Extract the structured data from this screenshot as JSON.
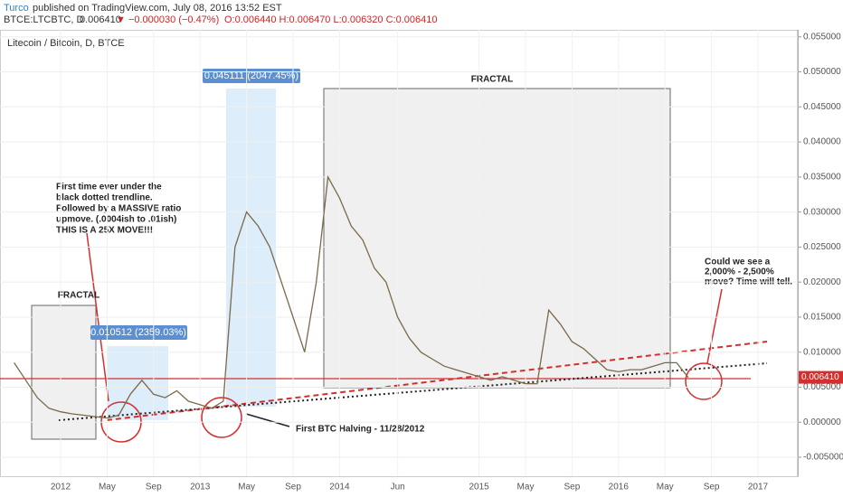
{
  "header": {
    "author": "Turco",
    "published": "published on TradingView.com, July 08, 2016 13:52 EST",
    "symbol": "BTCE:LTCBTC, D",
    "last": "0.006410",
    "change": "▼ −0.000030 (−0.47%)",
    "ohlc": "O:0.006440 H:0.006470 L:0.006320 C:0.006410"
  },
  "chart_data": {
    "type": "line",
    "title": "Litecoin / Bitcoin, D, BTCE",
    "color": "#7a6a4a",
    "x": [
      "2011-09",
      "2011-10",
      "2011-11",
      "2011-12",
      "2012-01",
      "2012-02",
      "2012-03",
      "2012-04",
      "2012-05",
      "2012-06",
      "2012-07",
      "2012-08",
      "2012-09",
      "2012-10",
      "2012-11",
      "2012-12",
      "2013-01",
      "2013-02",
      "2013-03",
      "2013-04",
      "2013-05",
      "2013-06",
      "2013-07",
      "2013-08",
      "2013-09",
      "2013-10",
      "2013-11",
      "2013-12",
      "2014-01",
      "2014-02",
      "2014-03",
      "2014-04",
      "2014-05",
      "2014-06",
      "2014-07",
      "2014-08",
      "2014-09",
      "2014-10",
      "2014-11",
      "2014-12",
      "2015-01",
      "2015-02",
      "2015-03",
      "2015-04",
      "2015-05",
      "2015-06",
      "2015-07",
      "2015-08",
      "2015-09",
      "2015-10",
      "2015-11",
      "2015-12",
      "2016-01",
      "2016-02",
      "2016-03",
      "2016-04",
      "2016-05",
      "2016-06",
      "2016-07"
    ],
    "values": [
      0.0085,
      0.006,
      0.0035,
      0.002,
      0.0015,
      0.0012,
      0.001,
      0.0008,
      0.0006,
      0.001,
      0.004,
      0.006,
      0.004,
      0.0035,
      0.0045,
      0.003,
      0.0025,
      0.002,
      0.003,
      0.025,
      0.03,
      0.028,
      0.025,
      0.02,
      0.015,
      0.01,
      0.02,
      0.035,
      0.032,
      0.028,
      0.026,
      0.022,
      0.02,
      0.015,
      0.012,
      0.01,
      0.009,
      0.008,
      0.0075,
      0.007,
      0.0065,
      0.006,
      0.0065,
      0.006,
      0.0055,
      0.0055,
      0.016,
      0.014,
      0.0115,
      0.0105,
      0.009,
      0.0075,
      0.0072,
      0.0075,
      0.0075,
      0.008,
      0.0085,
      0.0085,
      0.0064
    ],
    "ylim": [
      -0.0077,
      0.056
    ],
    "yticks": [
      {
        "value": -0.005,
        "label": "-0.005000"
      },
      {
        "value": 0,
        "label": "0.000000"
      },
      {
        "value": 0.005,
        "label": "0.005000"
      },
      {
        "value": 0.01,
        "label": "0.010000"
      },
      {
        "value": 0.015,
        "label": "0.015000"
      },
      {
        "value": 0.02,
        "label": "0.020000"
      },
      {
        "value": 0.025,
        "label": "0.025000"
      },
      {
        "value": 0.03,
        "label": "0.030000"
      },
      {
        "value": 0.035,
        "label": "0.035000"
      },
      {
        "value": 0.04,
        "label": "0.040000"
      },
      {
        "value": 0.045,
        "label": "0.045000"
      },
      {
        "value": 0.05,
        "label": "0.050000"
      },
      {
        "value": 0.055,
        "label": "0.055000"
      }
    ],
    "xticks": [
      {
        "value": "2012-01",
        "label": "2012"
      },
      {
        "value": "2012-05",
        "label": "May"
      },
      {
        "value": "2012-09",
        "label": "Sep"
      },
      {
        "value": "2013-01",
        "label": "2013"
      },
      {
        "value": "2013-05",
        "label": "May"
      },
      {
        "value": "2013-09",
        "label": "Sep"
      },
      {
        "value": "2014-01",
        "label": "2014"
      },
      {
        "value": "2014-06",
        "label": "Jun"
      },
      {
        "value": "2015-01",
        "label": "2015"
      },
      {
        "value": "2015-05",
        "label": "May"
      },
      {
        "value": "2015-09",
        "label": "Sep"
      },
      {
        "value": "2016-01",
        "label": "2016"
      },
      {
        "value": "2016-05",
        "label": "May"
      },
      {
        "value": "2016-09",
        "label": "Sep"
      },
      {
        "value": "2017-01",
        "label": "2017"
      }
    ],
    "last_price": {
      "value": 0.00641,
      "label": "0.006410"
    },
    "annotations": {
      "fractal_left": "FRACTAL",
      "fractal_right": "FRACTAL",
      "range_1": "0.010512 (2359.03%)",
      "range_2": "0.045111 (2047.45%)",
      "note_left": [
        "First time ever under the",
        "black dotted trendline.",
        "Followed by a MASSIVE ratio",
        "upmove. (.0004ish to .01ish)",
        "THIS IS A 25X MOVE!!!"
      ],
      "halving": "First BTC Halving - 11/28/2012",
      "note_right": [
        "Could we see a",
        "2,000% - 2,500%",
        "move? Time will tell."
      ]
    }
  }
}
